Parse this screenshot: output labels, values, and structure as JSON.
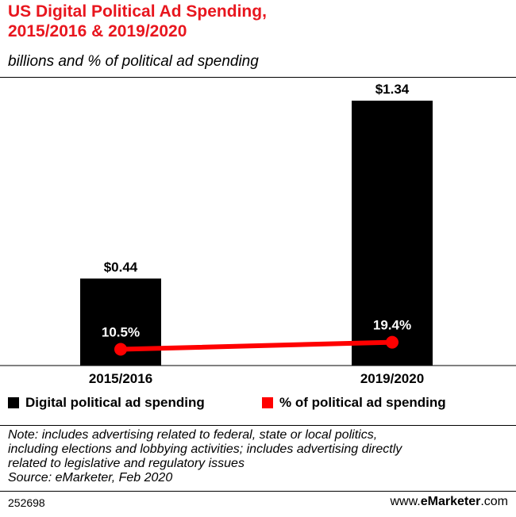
{
  "header": {
    "title_line1": "US Digital Political Ad Spending,",
    "title_line2": "2015/2016 & 2019/2020",
    "subtitle": "billions and % of political ad spending"
  },
  "colors": {
    "accent": "#e8161e",
    "bar": "#000000",
    "line": "#ff0000"
  },
  "chart_data": {
    "type": "bar",
    "title": "US Digital Political Ad Spending, 2015/2016 & 2019/2020",
    "subtitle": "billions and % of political ad spending",
    "categories": [
      "2015/2016",
      "2019/2020"
    ],
    "series": [
      {
        "name": "Digital political ad spending",
        "kind": "bar",
        "values": [
          0.44,
          1.34
        ],
        "labels": [
          "$0.44",
          "$1.34"
        ]
      },
      {
        "name": "% of political ad spending",
        "kind": "line",
        "values": [
          10.5,
          19.4
        ],
        "labels": [
          "10.5%",
          "19.4%"
        ]
      }
    ],
    "ylim_bar": [
      0,
      1.5
    ],
    "ylim_pct": [
      0,
      100
    ],
    "grid": false,
    "legend": "bottom"
  },
  "legend": {
    "bar_label": "Digital political ad spending",
    "line_label": "% of political ad spending"
  },
  "note": {
    "line1": "Note: includes advertising related to federal, state or local politics,",
    "line2": "including elections and lobbying activities; includes advertising directly",
    "line3": "related to legislative and regulatory issues",
    "source": "Source: eMarketer, Feb 2020"
  },
  "footer": {
    "id": "252698",
    "brand_prefix": "www.",
    "brand_bold": "eMarketer",
    "brand_suffix": ".com"
  }
}
